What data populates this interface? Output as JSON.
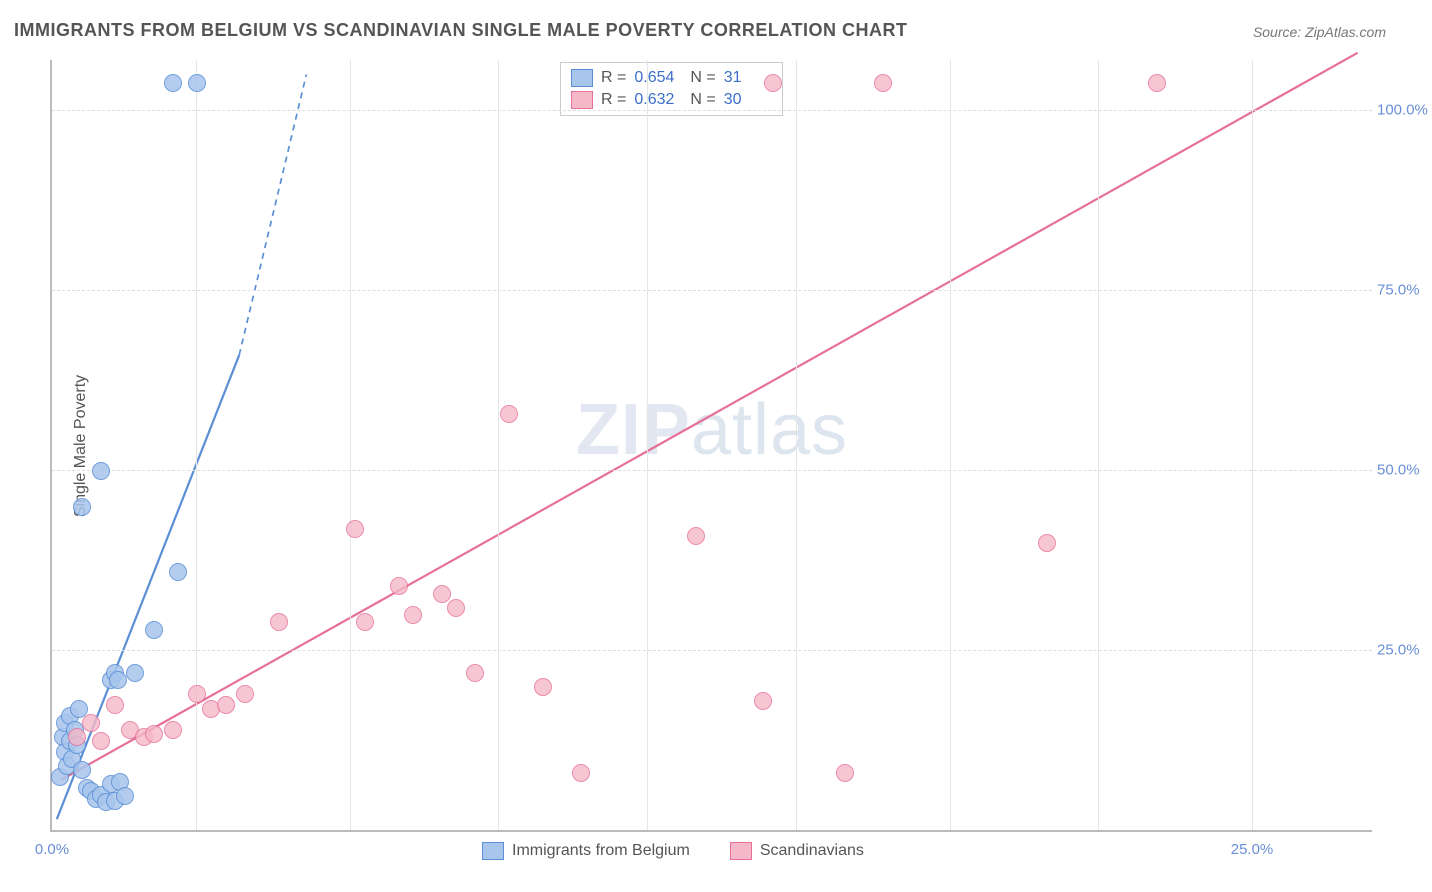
{
  "title": "IMMIGRANTS FROM BELGIUM VS SCANDINAVIAN SINGLE MALE POVERTY CORRELATION CHART",
  "source": "Source: ZipAtlas.com",
  "ylabel": "Single Male Poverty",
  "watermark_bold": "ZIP",
  "watermark_thin": "atlas",
  "chart": {
    "type": "scatter",
    "background_color": "#ffffff",
    "grid_color": "#dddddd",
    "axis_color": "#bbbbbb",
    "tick_color": "#6a8fd8",
    "xlim": [
      0,
      27.5
    ],
    "ylim": [
      0,
      107
    ],
    "xticks": [
      {
        "v": 0.0,
        "label": "0.0%"
      },
      {
        "v": 25.0,
        "label": "25.0%"
      }
    ],
    "xgrid": [
      3.0,
      6.2,
      9.3,
      12.4,
      15.5,
      18.7,
      21.8,
      25.0
    ],
    "yticks": [
      {
        "v": 25.0,
        "label": "25.0%"
      },
      {
        "v": 50.0,
        "label": "50.0%"
      },
      {
        "v": 75.0,
        "label": "75.0%"
      },
      {
        "v": 100.0,
        "label": "100.0%"
      }
    ],
    "series": [
      {
        "name": "Immigrants from Belgium",
        "fill": "#a8c5ec",
        "stroke": "#5a8fd6",
        "fill_opacity": 0.55,
        "marker_radius": 8,
        "trend": {
          "x1": 0.1,
          "y1": 1.5,
          "x2": 3.9,
          "y2": 66,
          "dash_x2": 5.3,
          "dash_y2": 105,
          "width": 2.2
        },
        "stats": {
          "R": "0.654",
          "N": "31"
        },
        "points": [
          [
            0.15,
            7.5
          ],
          [
            0.2,
            13
          ],
          [
            0.25,
            11
          ],
          [
            0.25,
            15
          ],
          [
            0.3,
            9
          ],
          [
            0.35,
            12.5
          ],
          [
            0.35,
            16
          ],
          [
            0.4,
            10
          ],
          [
            0.45,
            14
          ],
          [
            0.5,
            12
          ],
          [
            0.55,
            17
          ],
          [
            0.6,
            8.5
          ],
          [
            0.7,
            6
          ],
          [
            0.8,
            5.5
          ],
          [
            0.9,
            4.5
          ],
          [
            1.0,
            5
          ],
          [
            1.1,
            4
          ],
          [
            1.2,
            6.5
          ],
          [
            1.3,
            4.2
          ],
          [
            1.4,
            6.8
          ],
          [
            1.5,
            4.8
          ],
          [
            0.6,
            45
          ],
          [
            1.0,
            50
          ],
          [
            1.2,
            21
          ],
          [
            1.3,
            22
          ],
          [
            1.7,
            22
          ],
          [
            2.1,
            28
          ],
          [
            2.6,
            36
          ],
          [
            2.5,
            104
          ],
          [
            3.0,
            104
          ],
          [
            1.35,
            21
          ]
        ]
      },
      {
        "name": "Scandinavians",
        "fill": "#f5b8c9",
        "stroke": "#e77099",
        "fill_opacity": 0.5,
        "marker_radius": 8,
        "trend": {
          "x1": 0.2,
          "y1": 7,
          "x2": 27.2,
          "y2": 108,
          "width": 2.2
        },
        "stats": {
          "R": "0.632",
          "N": "30"
        },
        "points": [
          [
            0.5,
            13
          ],
          [
            0.8,
            15
          ],
          [
            1.0,
            12.5
          ],
          [
            1.3,
            17.5
          ],
          [
            1.6,
            14
          ],
          [
            1.9,
            13
          ],
          [
            2.1,
            13.5
          ],
          [
            2.5,
            14
          ],
          [
            3.0,
            19
          ],
          [
            3.3,
            17
          ],
          [
            3.6,
            17.5
          ],
          [
            4.0,
            19
          ],
          [
            4.7,
            29
          ],
          [
            6.3,
            42
          ],
          [
            6.5,
            29
          ],
          [
            7.2,
            34
          ],
          [
            7.5,
            30
          ],
          [
            8.1,
            33
          ],
          [
            8.4,
            31
          ],
          [
            8.8,
            22
          ],
          [
            9.5,
            58
          ],
          [
            10.2,
            20
          ],
          [
            11.0,
            8
          ],
          [
            13.4,
            41
          ],
          [
            14.8,
            18
          ],
          [
            15.0,
            104
          ],
          [
            16.5,
            8
          ],
          [
            17.3,
            104
          ],
          [
            20.7,
            40
          ],
          [
            23.0,
            104
          ]
        ]
      }
    ],
    "legend_bottom": [
      {
        "label": "Immigrants from Belgium",
        "fill": "#a8c5ec",
        "stroke": "#5a8fd6"
      },
      {
        "label": "Scandinavians",
        "fill": "#f5b8c9",
        "stroke": "#e77099"
      }
    ]
  }
}
